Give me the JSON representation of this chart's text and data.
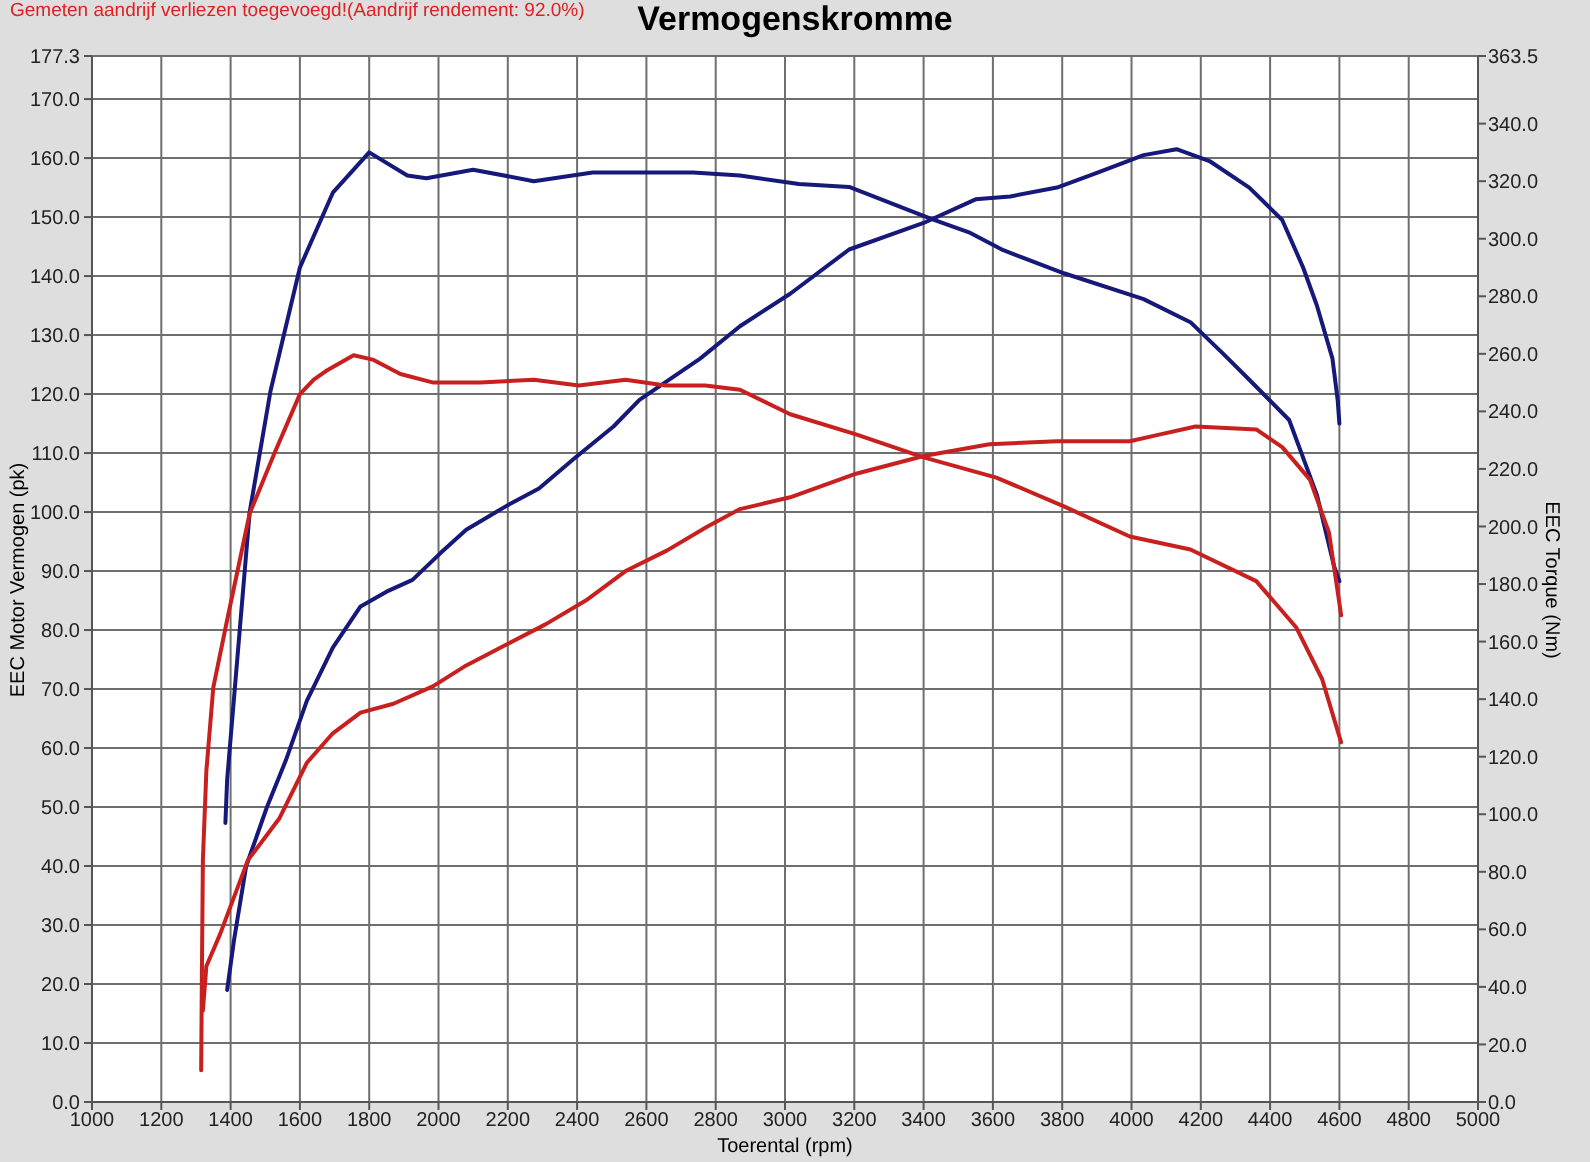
{
  "chart_data": {
    "type": "line",
    "title": "Vermogenskromme",
    "annotations": [
      "Gemeten aandrijf verliezen toegevoegd!(Aandrijf rendement: 92.0%)"
    ],
    "xlabel": "Toerental (rpm)",
    "ylabel": "EEC Motor Vermogen (pk)",
    "y2label": "EEC Torque (Nm)",
    "xlim": [
      1000,
      5000
    ],
    "xticks": [
      1000,
      1200,
      1400,
      1600,
      1800,
      2000,
      2200,
      2400,
      2600,
      2800,
      3000,
      3200,
      3400,
      3600,
      3800,
      4000,
      4200,
      4400,
      4600,
      4800,
      5000
    ],
    "ylim": [
      0,
      177.3
    ],
    "yticks": [
      {
        "value": 0,
        "label": "0.0"
      },
      {
        "value": 10,
        "label": "10.0"
      },
      {
        "value": 20,
        "label": "20.0"
      },
      {
        "value": 30,
        "label": "30.0"
      },
      {
        "value": 40,
        "label": "40.0"
      },
      {
        "value": 50,
        "label": "50.0"
      },
      {
        "value": 60,
        "label": "60.0"
      },
      {
        "value": 70,
        "label": "70.0"
      },
      {
        "value": 80,
        "label": "80.0"
      },
      {
        "value": 90,
        "label": "90.0"
      },
      {
        "value": 100,
        "label": "100.0"
      },
      {
        "value": 110,
        "label": "110.0"
      },
      {
        "value": 120,
        "label": "120.0"
      },
      {
        "value": 130,
        "label": "130.0"
      },
      {
        "value": 140,
        "label": "140.0"
      },
      {
        "value": 150,
        "label": "150.0"
      },
      {
        "value": 160,
        "label": "160.0"
      },
      {
        "value": 170,
        "label": "170.0"
      },
      177.3
    ],
    "y2lim": [
      0,
      363.5
    ],
    "y2ticks": [
      {
        "value": 0,
        "label": "0.0"
      },
      {
        "value": 20,
        "label": "20.0"
      },
      {
        "value": 40,
        "label": "40.0"
      },
      {
        "value": 60,
        "label": "60.0"
      },
      {
        "value": 80,
        "label": "80.0"
      },
      {
        "value": 100,
        "label": "100.0"
      },
      {
        "value": 120,
        "label": "120.0"
      },
      {
        "value": 140,
        "label": "140.0"
      },
      {
        "value": 160,
        "label": "160.0"
      },
      {
        "value": 180,
        "label": "180.0"
      },
      {
        "value": 200,
        "label": "200.0"
      },
      {
        "value": 220,
        "label": "220.0"
      },
      {
        "value": 240,
        "label": "240.0"
      },
      {
        "value": 260,
        "label": "260.0"
      },
      {
        "value": 280,
        "label": "280.0"
      },
      {
        "value": 300,
        "label": "300.0"
      },
      {
        "value": 320,
        "label": "320.0"
      },
      {
        "value": 340,
        "label": "340.0"
      },
      363.5
    ],
    "grid": true,
    "series": [
      {
        "color": "#16187a",
        "axis": "y2",
        "x": [
          1385,
          1390,
          1455,
          1515,
          1600,
          1695,
          1800,
          1910,
          1965,
          2100,
          2275,
          2445,
          2600,
          2735,
          2870,
          3040,
          3185,
          3420,
          3535,
          3630,
          3805,
          4035,
          4170,
          4265,
          4340,
          4455,
          4535,
          4585,
          4600
        ],
        "values": [
          97,
          112,
          205,
          247,
          290,
          316,
          330,
          322,
          321,
          324,
          320,
          323,
          323,
          323,
          322,
          319,
          318,
          307,
          302,
          296,
          288,
          279,
          271,
          260,
          251,
          237,
          211,
          186,
          181
        ]
      },
      {
        "color": "#16187a",
        "axis": "y",
        "x": [
          1390,
          1410,
          1445,
          1505,
          1560,
          1620,
          1695,
          1775,
          1850,
          1925,
          2005,
          2080,
          2195,
          2290,
          2390,
          2505,
          2580,
          2755,
          2870,
          3015,
          3185,
          3400,
          3550,
          3650,
          3785,
          3900,
          4035,
          4130,
          4225,
          4340,
          4435,
          4495,
          4535,
          4580,
          4595,
          4600
        ],
        "values": [
          19,
          27.5,
          40,
          50,
          58,
          68,
          77,
          84,
          86.5,
          88.5,
          93,
          97,
          101,
          104,
          109,
          114.5,
          119,
          126,
          131.5,
          137,
          144.5,
          149,
          153,
          153.5,
          155,
          157.5,
          160.5,
          161.5,
          159.5,
          155,
          149.5,
          141.5,
          135,
          126,
          119,
          115
        ]
      },
      {
        "color": "#c8201e",
        "axis": "y2",
        "x": [
          1315,
          1317,
          1320,
          1330,
          1350,
          1390,
          1455,
          1525,
          1600,
          1640,
          1675,
          1755,
          1810,
          1890,
          1985,
          2120,
          2275,
          2405,
          2540,
          2655,
          2770,
          2870,
          3015,
          3205,
          3400,
          3610,
          3805,
          3995,
          4170,
          4360,
          4475,
          4550,
          4605
        ],
        "values": [
          11,
          42,
          84,
          115,
          144,
          167.5,
          204.5,
          225,
          246,
          251,
          254,
          259.5,
          258,
          253,
          250,
          250,
          251,
          249,
          251,
          249,
          249,
          247.5,
          239,
          232,
          224,
          217,
          207,
          196.5,
          192,
          181,
          165,
          147,
          125
        ]
      },
      {
        "color": "#c8201e",
        "axis": "y",
        "x": [
          1320,
          1330,
          1370,
          1450,
          1540,
          1620,
          1695,
          1775,
          1870,
          1985,
          2080,
          2195,
          2310,
          2425,
          2540,
          2660,
          2775,
          2870,
          3015,
          3205,
          3400,
          3590,
          3785,
          3995,
          4070,
          4185,
          4360,
          4435,
          4515,
          4570,
          4605
        ],
        "values": [
          15.5,
          23,
          28.5,
          41,
          48,
          57.5,
          62.5,
          66,
          67.5,
          70.5,
          74,
          77.5,
          81,
          85,
          90,
          93.5,
          97.5,
          100.5,
          102.5,
          106.5,
          109.5,
          111.5,
          112,
          112,
          113,
          114.5,
          114,
          111,
          105.5,
          96.5,
          82.5
        ]
      }
    ]
  }
}
